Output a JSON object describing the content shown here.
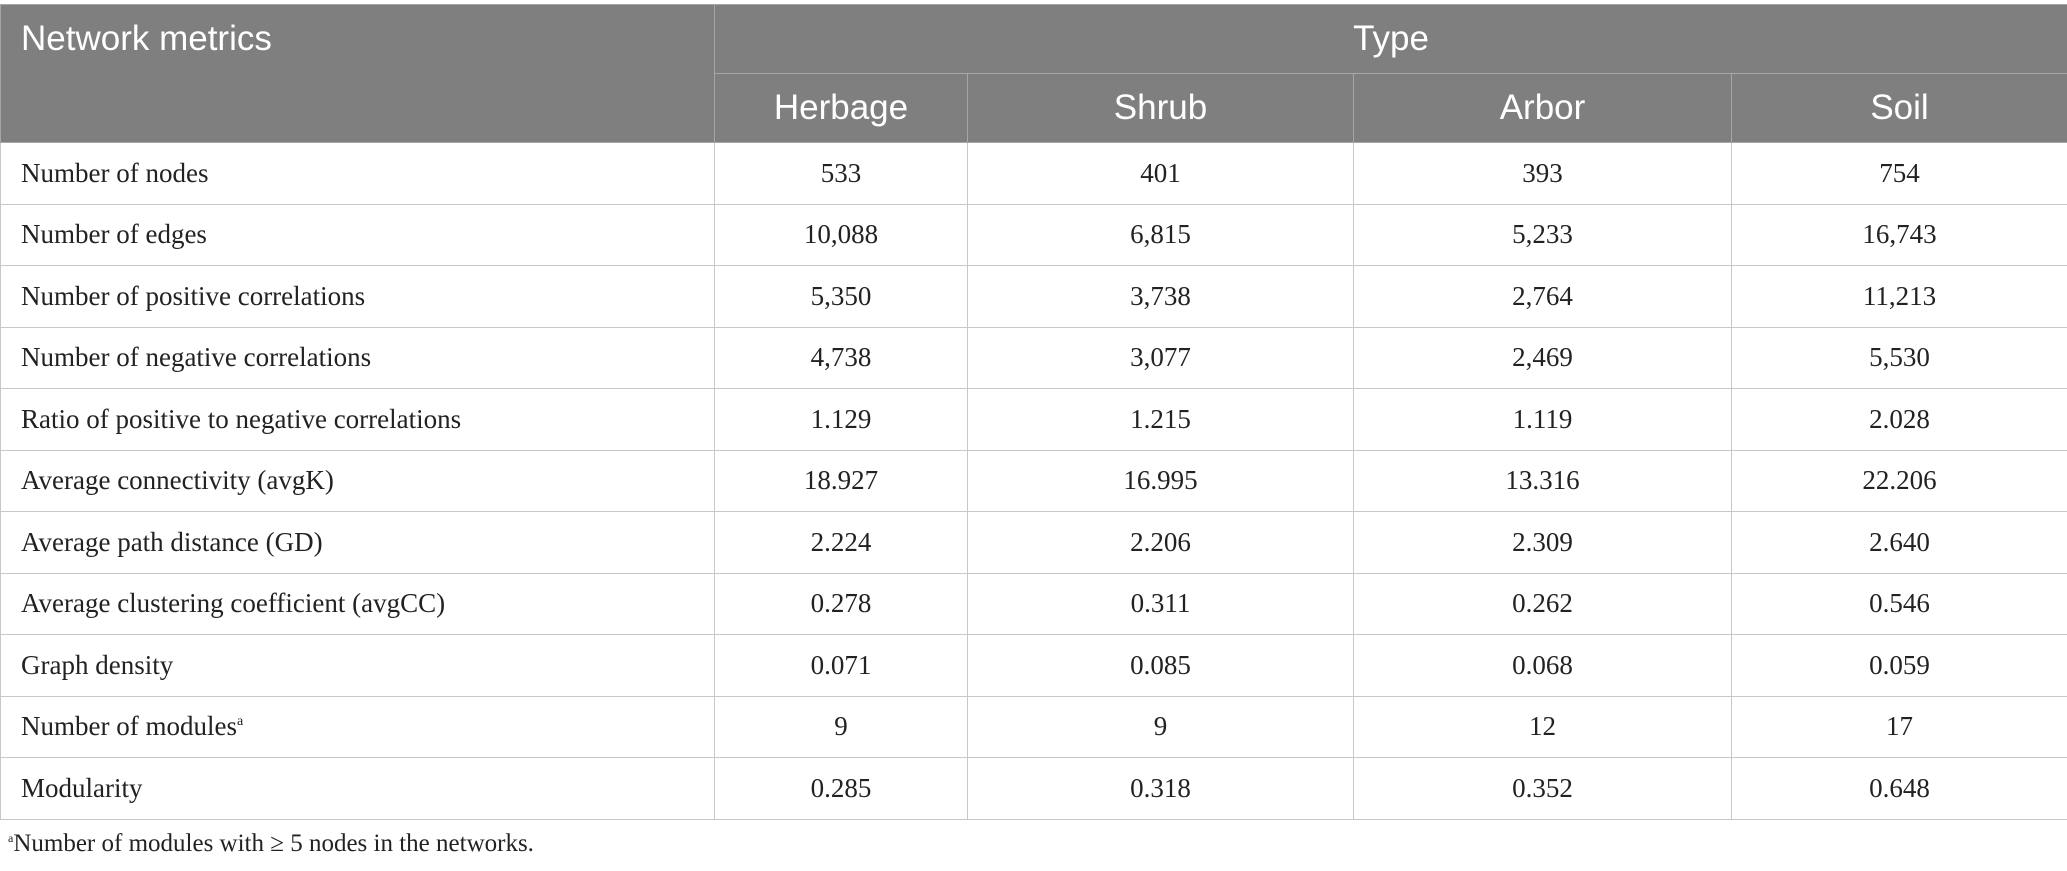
{
  "table": {
    "corner_header": "Network metrics",
    "group_header": "Type",
    "columns": [
      "Herbage",
      "Shrub",
      "Arbor",
      "Soil"
    ],
    "rows": [
      {
        "metric": "Number of nodes",
        "sup": "",
        "values": [
          "533",
          "401",
          "393",
          "754"
        ]
      },
      {
        "metric": "Number of edges",
        "sup": "",
        "values": [
          "10,088",
          "6,815",
          "5,233",
          "16,743"
        ]
      },
      {
        "metric": "Number of positive correlations",
        "sup": "",
        "values": [
          "5,350",
          "3,738",
          "2,764",
          "11,213"
        ]
      },
      {
        "metric": "Number of negative correlations",
        "sup": "",
        "values": [
          "4,738",
          "3,077",
          "2,469",
          "5,530"
        ]
      },
      {
        "metric": "Ratio of positive to negative correlations",
        "sup": "",
        "values": [
          "1.129",
          "1.215",
          "1.119",
          "2.028"
        ]
      },
      {
        "metric": "Average connectivity (avgK)",
        "sup": "",
        "values": [
          "18.927",
          "16.995",
          "13.316",
          "22.206"
        ]
      },
      {
        "metric": "Average path distance (GD)",
        "sup": "",
        "values": [
          "2.224",
          "2.206",
          "2.309",
          "2.640"
        ]
      },
      {
        "metric": "Average clustering coefficient (avgCC)",
        "sup": "",
        "values": [
          "0.278",
          "0.311",
          "0.262",
          "0.546"
        ]
      },
      {
        "metric": "Graph density",
        "sup": "",
        "values": [
          "0.071",
          "0.085",
          "0.068",
          "0.059"
        ]
      },
      {
        "metric": "Number of modules",
        "sup": "a",
        "values": [
          "9",
          "9",
          "12",
          "17"
        ]
      },
      {
        "metric": "Modularity",
        "sup": "",
        "values": [
          "0.285",
          "0.318",
          "0.352",
          "0.648"
        ]
      }
    ]
  },
  "footnote": {
    "marker": "a",
    "text": "Number of modules with ≥ 5 nodes in the networks."
  },
  "colors": {
    "header_bg": "#7f7f7f",
    "header_text": "#ffffff",
    "grid_line": "#c8c8c8"
  }
}
